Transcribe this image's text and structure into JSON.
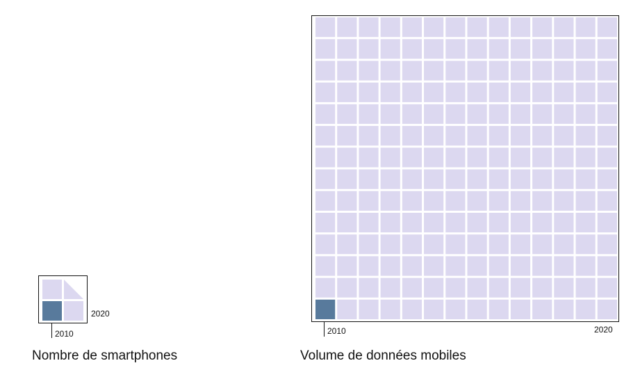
{
  "chart_data": [
    {
      "type": "unit-square",
      "title": "Nombre de smartphones",
      "start_label": "2010",
      "end_label": "2020",
      "baseline_units": 1,
      "grid_side": 2,
      "total_units": 3.5,
      "colors": {
        "baseline": "#587a9c",
        "growth": "#dcd8f0"
      }
    },
    {
      "type": "unit-square",
      "title": "Volume de données mobiles",
      "start_label": "2010",
      "end_label": "2020",
      "baseline_units": 1,
      "grid_side": 14,
      "total_units": 196,
      "colors": {
        "baseline": "#587a9c",
        "growth": "#dcd8f0"
      }
    }
  ]
}
